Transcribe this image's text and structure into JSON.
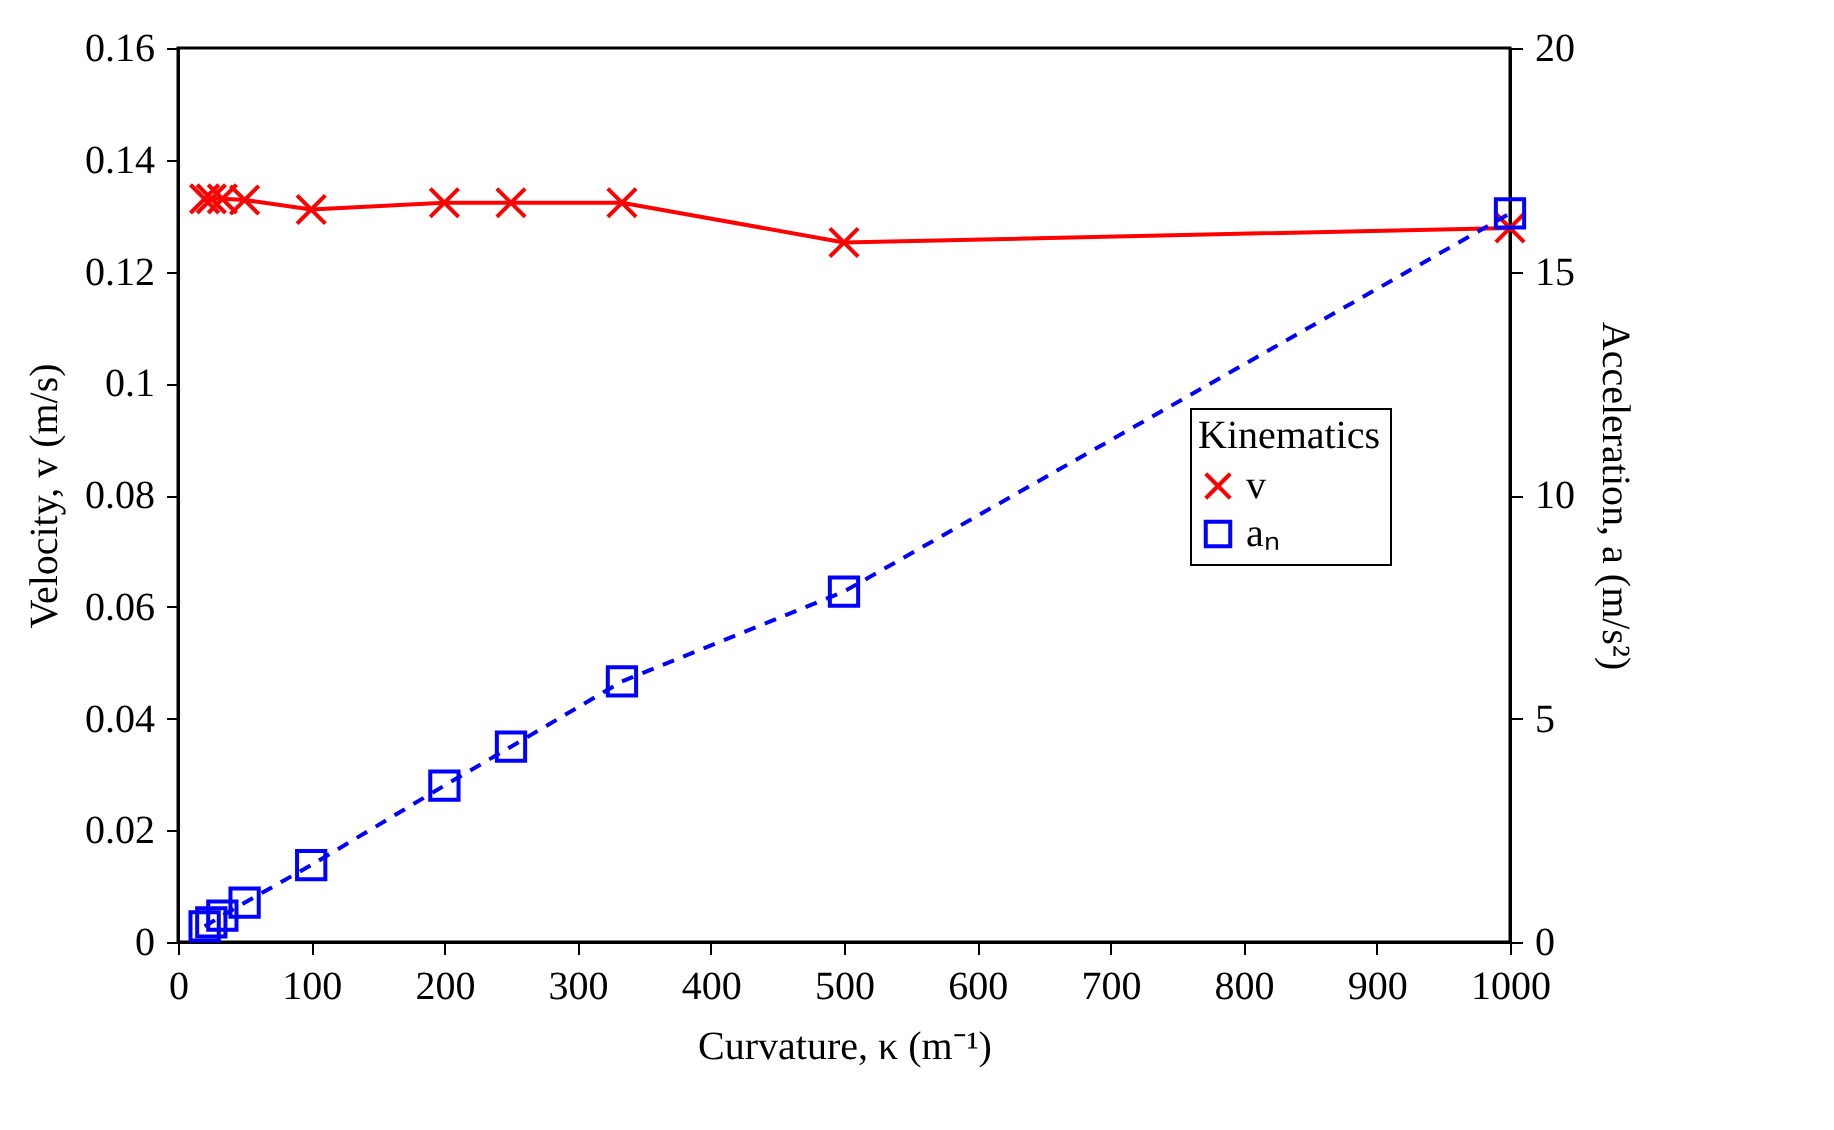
{
  "chart_data": {
    "type": "line",
    "xlabel": "Curvature, κ (m⁻¹)",
    "ylabel": "Velocity, v (m/s)",
    "y2label": "Acceleration, a (m/s²)",
    "legend_title": "Kinematics",
    "x": [
      20,
      25,
      33.3,
      50,
      100,
      200,
      250,
      333.3,
      500,
      1000
    ],
    "series": [
      {
        "name": "v",
        "color": "#ff0000",
        "marker": "cross",
        "line_style": "solid",
        "values": [
          0.133,
          0.133,
          0.133,
          0.1328,
          0.1311,
          0.1323,
          0.1323,
          0.1323,
          0.1252,
          0.1278
        ]
      },
      {
        "name": "aₙ",
        "color": "#0000ff",
        "marker": "square",
        "line_style": "dashed",
        "axis": "y2",
        "values": [
          0.35,
          0.44,
          0.59,
          0.88,
          1.72,
          3.5,
          4.37,
          5.83,
          7.84,
          16.3
        ]
      }
    ],
    "xlim": [
      0,
      1000
    ],
    "xticks": [
      0,
      100,
      200,
      300,
      400,
      500,
      600,
      700,
      800,
      900,
      1000
    ],
    "ylim": [
      0,
      0.16
    ],
    "yticks": [
      0,
      0.02,
      0.04,
      0.06,
      0.08,
      0.1,
      0.12,
      0.14,
      0.16
    ],
    "y2lim": [
      0,
      20
    ],
    "y2ticks": [
      0,
      5,
      10,
      15,
      20
    ],
    "legend": "right"
  }
}
